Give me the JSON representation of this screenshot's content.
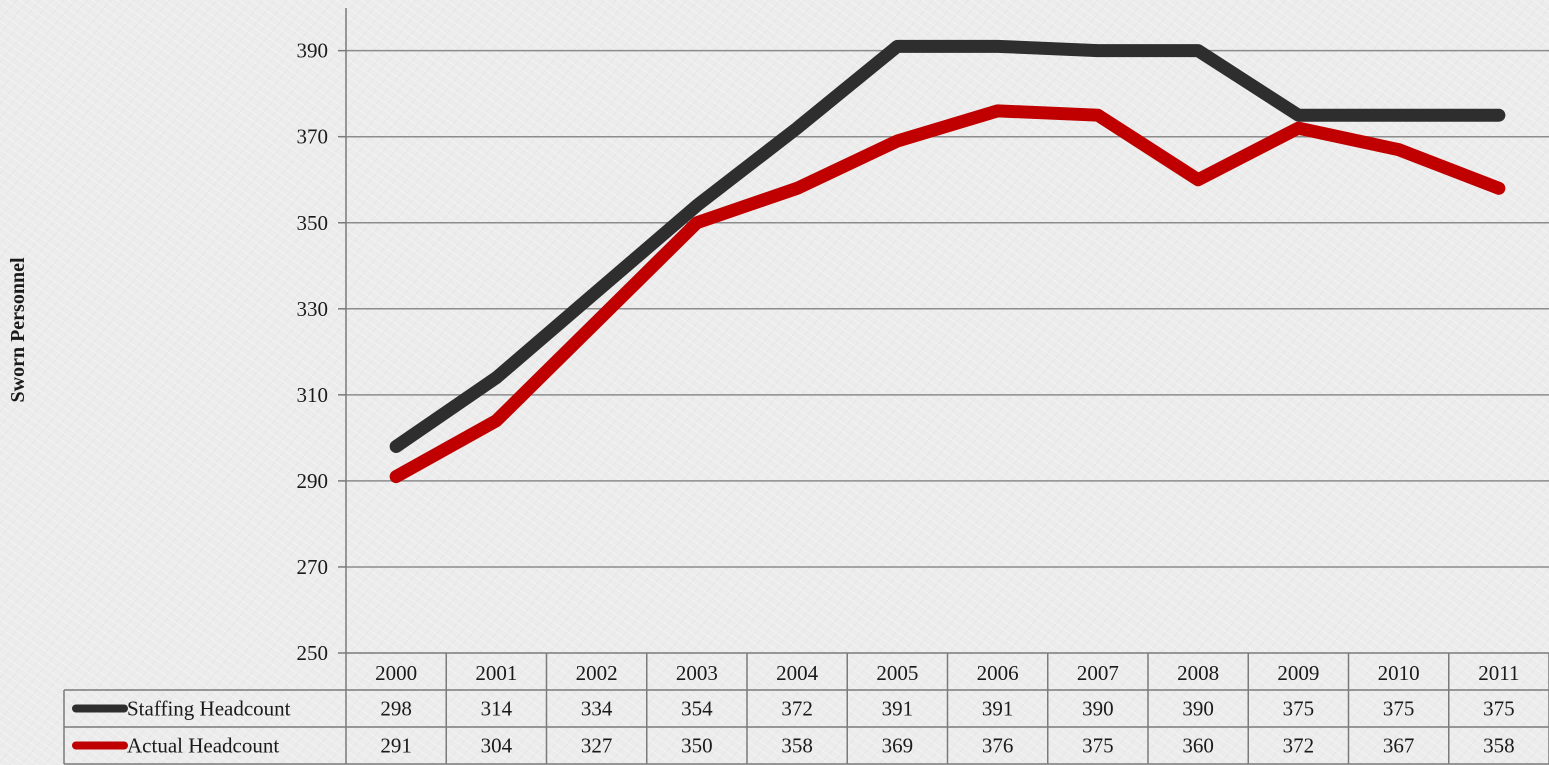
{
  "chart_data": {
    "type": "line",
    "title": "",
    "xlabel": "",
    "ylabel": "Sworn Personnel",
    "categories": [
      "2000",
      "2001",
      "2002",
      "2003",
      "2004",
      "2005",
      "2006",
      "2007",
      "2008",
      "2009",
      "2010",
      "2011"
    ],
    "ylim": [
      250,
      400
    ],
    "yticks": [
      250,
      270,
      290,
      310,
      330,
      350,
      370,
      390
    ],
    "grid": true,
    "legend_placement": "data-table-left",
    "series": [
      {
        "name": "Staffing Headcount",
        "color": "#2e2e2e",
        "values": [
          298,
          314,
          334,
          354,
          372,
          391,
          391,
          390,
          390,
          375,
          375,
          375
        ]
      },
      {
        "name": "Actual Headcount",
        "color": "#c00000",
        "values": [
          291,
          304,
          327,
          350,
          358,
          369,
          376,
          375,
          360,
          372,
          367,
          358
        ]
      }
    ]
  }
}
